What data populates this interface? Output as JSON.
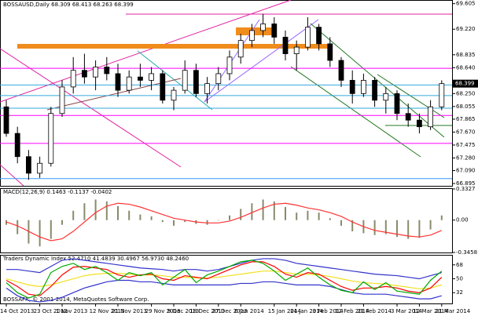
{
  "chart_data": [
    {
      "type": "candlestick",
      "title": "BOSSAUSD,Daily  68.309 68.413 68.263 68.399",
      "last_price": "68.399",
      "categories": [
        "14 Oct 2013",
        null,
        null,
        "23 Oct 2013",
        null,
        "1 Nov 2013",
        null,
        null,
        "12 Nov 2013",
        null,
        "21 Nov 2013",
        null,
        null,
        "29 Nov 2013",
        null,
        "9 Dec 2013",
        null,
        "18 Dec 2013",
        null,
        "27 Dec 2013",
        null,
        "6 Jan 2014",
        null,
        null,
        "15 Jan 2014",
        null,
        "24 Jan 2014",
        null,
        "3 Feb 2014",
        null,
        "12 Feb 2014",
        null,
        "21 Feb 2014",
        null,
        null,
        "3 Mar 2014",
        null,
        "12 Mar 2014",
        null,
        "21 Mar 2014"
      ],
      "ohlc": [
        [
          68.05,
          68.15,
          67.6,
          67.65
        ],
        [
          67.65,
          67.75,
          67.2,
          67.3
        ],
        [
          67.3,
          67.4,
          66.95,
          67.05
        ],
        [
          67.05,
          67.3,
          66.98,
          67.2
        ],
        [
          67.2,
          68.05,
          67.15,
          67.95
        ],
        [
          67.95,
          68.45,
          67.9,
          68.35
        ],
        [
          68.35,
          68.8,
          68.25,
          68.6
        ],
        [
          68.6,
          68.85,
          68.4,
          68.5
        ],
        [
          68.5,
          68.75,
          68.3,
          68.65
        ],
        [
          68.65,
          68.8,
          68.45,
          68.55
        ],
        [
          68.55,
          68.7,
          68.2,
          68.3
        ],
        [
          68.3,
          68.6,
          68.25,
          68.5
        ],
        [
          68.5,
          68.7,
          68.35,
          68.45
        ],
        [
          68.45,
          68.65,
          68.3,
          68.55
        ],
        [
          68.55,
          68.6,
          68.1,
          68.15
        ],
        [
          68.15,
          68.35,
          68.0,
          68.3
        ],
        [
          68.3,
          68.75,
          68.25,
          68.6
        ],
        [
          68.6,
          68.7,
          68.2,
          68.25
        ],
        [
          68.25,
          68.5,
          68.1,
          68.4
        ],
        [
          68.4,
          68.65,
          68.3,
          68.55
        ],
        [
          68.55,
          68.9,
          68.45,
          68.8
        ],
        [
          68.8,
          69.15,
          68.7,
          69.05
        ],
        [
          69.05,
          69.3,
          68.95,
          69.2
        ],
        [
          69.2,
          69.45,
          69.1,
          69.3
        ],
        [
          69.3,
          69.4,
          69.0,
          69.1
        ],
        [
          69.1,
          69.2,
          68.75,
          68.85
        ],
        [
          68.85,
          69.05,
          68.6,
          68.95
        ],
        [
          68.95,
          69.4,
          68.9,
          69.25
        ],
        [
          69.25,
          69.3,
          68.9,
          69.0
        ],
        [
          69.0,
          69.1,
          68.65,
          68.75
        ],
        [
          68.75,
          68.8,
          68.35,
          68.45
        ],
        [
          68.45,
          68.6,
          68.1,
          68.25
        ],
        [
          68.25,
          68.55,
          68.2,
          68.45
        ],
        [
          68.45,
          68.5,
          68.05,
          68.15
        ],
        [
          68.15,
          68.35,
          67.95,
          68.25
        ],
        [
          68.25,
          68.3,
          67.85,
          67.95
        ],
        [
          67.95,
          68.1,
          67.75,
          67.85
        ],
        [
          67.85,
          67.95,
          67.65,
          67.75
        ],
        [
          67.75,
          68.15,
          67.7,
          68.05
        ],
        [
          68.05,
          68.45,
          68.0,
          68.4
        ]
      ],
      "levels": [
        {
          "value": 68.63,
          "color": "#ff00ff"
        },
        {
          "value": 68.38,
          "color": "#33aadd"
        },
        {
          "value": 68.22,
          "color": "#33aadd"
        },
        {
          "value": 68.03,
          "color": "#33aadd"
        },
        {
          "value": 67.92,
          "color": "#ff00ff"
        },
        {
          "value": 67.5,
          "color": "#ff00ff"
        },
        {
          "value": 66.97,
          "color": "#3399ff"
        }
      ],
      "ylim": [
        66.86,
        69.66
      ],
      "yticks": [
        {
          "value": 69.605,
          "label": "69.605"
        },
        {
          "value": 69.22,
          "label": "69.220"
        },
        {
          "value": 68.835,
          "label": "68.835"
        },
        {
          "value": 68.64,
          "label": "68.640"
        },
        {
          "value": 68.25,
          "label": "68.250"
        },
        {
          "value": 68.055,
          "label": "68.055"
        },
        {
          "value": 67.865,
          "label": "67.865"
        },
        {
          "value": 67.67,
          "label": "67.670"
        },
        {
          "value": 67.475,
          "label": "67.475"
        },
        {
          "value": 67.28,
          "label": "67.280"
        },
        {
          "value": 67.09,
          "label": "67.090"
        },
        {
          "value": 66.895,
          "label": "66.895"
        }
      ],
      "up_color": "#ffffff",
      "down_color": "#000000"
    },
    {
      "type": "macd",
      "title": "MACD(12,26,9) 0.1463 -0.1137 -0.0402",
      "series": [
        {
          "color": "#8a8a6a",
          "values": [
            -0.05,
            -0.15,
            -0.25,
            -0.28,
            -0.2,
            -0.05,
            0.1,
            0.18,
            0.22,
            0.2,
            0.15,
            0.1,
            0.06,
            0.04,
            -0.02,
            -0.06,
            -0.02,
            -0.04,
            -0.05,
            0.0,
            0.05,
            0.12,
            0.18,
            0.22,
            0.2,
            0.14,
            0.08,
            0.1,
            0.08,
            0.02,
            -0.06,
            -0.12,
            -0.14,
            -0.16,
            -0.15,
            -0.18,
            -0.2,
            -0.19,
            -0.1,
            0.05
          ]
        },
        {
          "color": "#ff3333",
          "values": [
            -0.02,
            -0.06,
            -0.12,
            -0.18,
            -0.22,
            -0.2,
            -0.12,
            -0.02,
            0.08,
            0.15,
            0.18,
            0.17,
            0.14,
            0.1,
            0.06,
            0.02,
            0.0,
            -0.02,
            -0.03,
            -0.03,
            -0.01,
            0.03,
            0.08,
            0.13,
            0.17,
            0.18,
            0.16,
            0.13,
            0.11,
            0.08,
            0.04,
            -0.02,
            -0.07,
            -0.11,
            -0.13,
            -0.15,
            -0.17,
            -0.18,
            -0.16,
            -0.11
          ]
        }
      ],
      "ylim": [
        -0.3458,
        0.3327
      ],
      "yticks": [
        {
          "value": 0.3327,
          "label": "0.3327"
        },
        {
          "value": 0,
          "label": "0.00"
        },
        {
          "value": -0.3458,
          "label": "-0.3458"
        }
      ]
    },
    {
      "type": "line",
      "title": "Traders Dynamic Index 52.4710 41.4839 30.4967 56.9730 48.2460",
      "series": [
        {
          "color": "#3333cc",
          "values": [
            62,
            62,
            60,
            58,
            66,
            74,
            76,
            74,
            72,
            70,
            68,
            66,
            64,
            63,
            62,
            60,
            62,
            62,
            60,
            62,
            66,
            70,
            74,
            76,
            76,
            74,
            70,
            68,
            66,
            64,
            62,
            60,
            58,
            56,
            55,
            54,
            52,
            50,
            54,
            58
          ]
        },
        {
          "color": "#3333cc",
          "values": [
            38,
            28,
            22,
            20,
            22,
            26,
            32,
            38,
            42,
            46,
            48,
            48,
            46,
            46,
            44,
            42,
            42,
            42,
            42,
            42,
            42,
            44,
            44,
            46,
            46,
            44,
            42,
            42,
            42,
            40,
            36,
            32,
            30,
            30,
            30,
            28,
            26,
            24,
            24,
            28
          ]
        },
        {
          "color": "#f0e020",
          "values": [
            50,
            46,
            42,
            40,
            42,
            46,
            50,
            54,
            56,
            57,
            57,
            56,
            55,
            55,
            54,
            52,
            52,
            51,
            51,
            52,
            54,
            56,
            58,
            60,
            60,
            58,
            56,
            56,
            55,
            53,
            50,
            47,
            45,
            44,
            43,
            41,
            39,
            37,
            38,
            42
          ]
        },
        {
          "color": "#ff0000",
          "values": [
            48,
            40,
            30,
            28,
            40,
            55,
            65,
            66,
            64,
            62,
            55,
            52,
            55,
            56,
            50,
            48,
            54,
            52,
            50,
            56,
            62,
            68,
            72,
            72,
            66,
            56,
            52,
            58,
            56,
            48,
            40,
            35,
            38,
            38,
            40,
            38,
            34,
            32,
            38,
            52
          ]
        },
        {
          "color": "#00aa00",
          "values": [
            45,
            32,
            25,
            30,
            58,
            66,
            70,
            62,
            66,
            58,
            48,
            58,
            54,
            58,
            42,
            52,
            62,
            45,
            55,
            60,
            66,
            72,
            74,
            70,
            60,
            48,
            56,
            64,
            52,
            42,
            35,
            32,
            46,
            36,
            45,
            34,
            32,
            30,
            48,
            60
          ]
        }
      ],
      "ylim": [
        18,
        80
      ],
      "yticks": [
        68,
        50,
        32
      ]
    }
  ],
  "footer": "BOSSAFX, © 2001-2014, MetaQuotes Software Corp."
}
